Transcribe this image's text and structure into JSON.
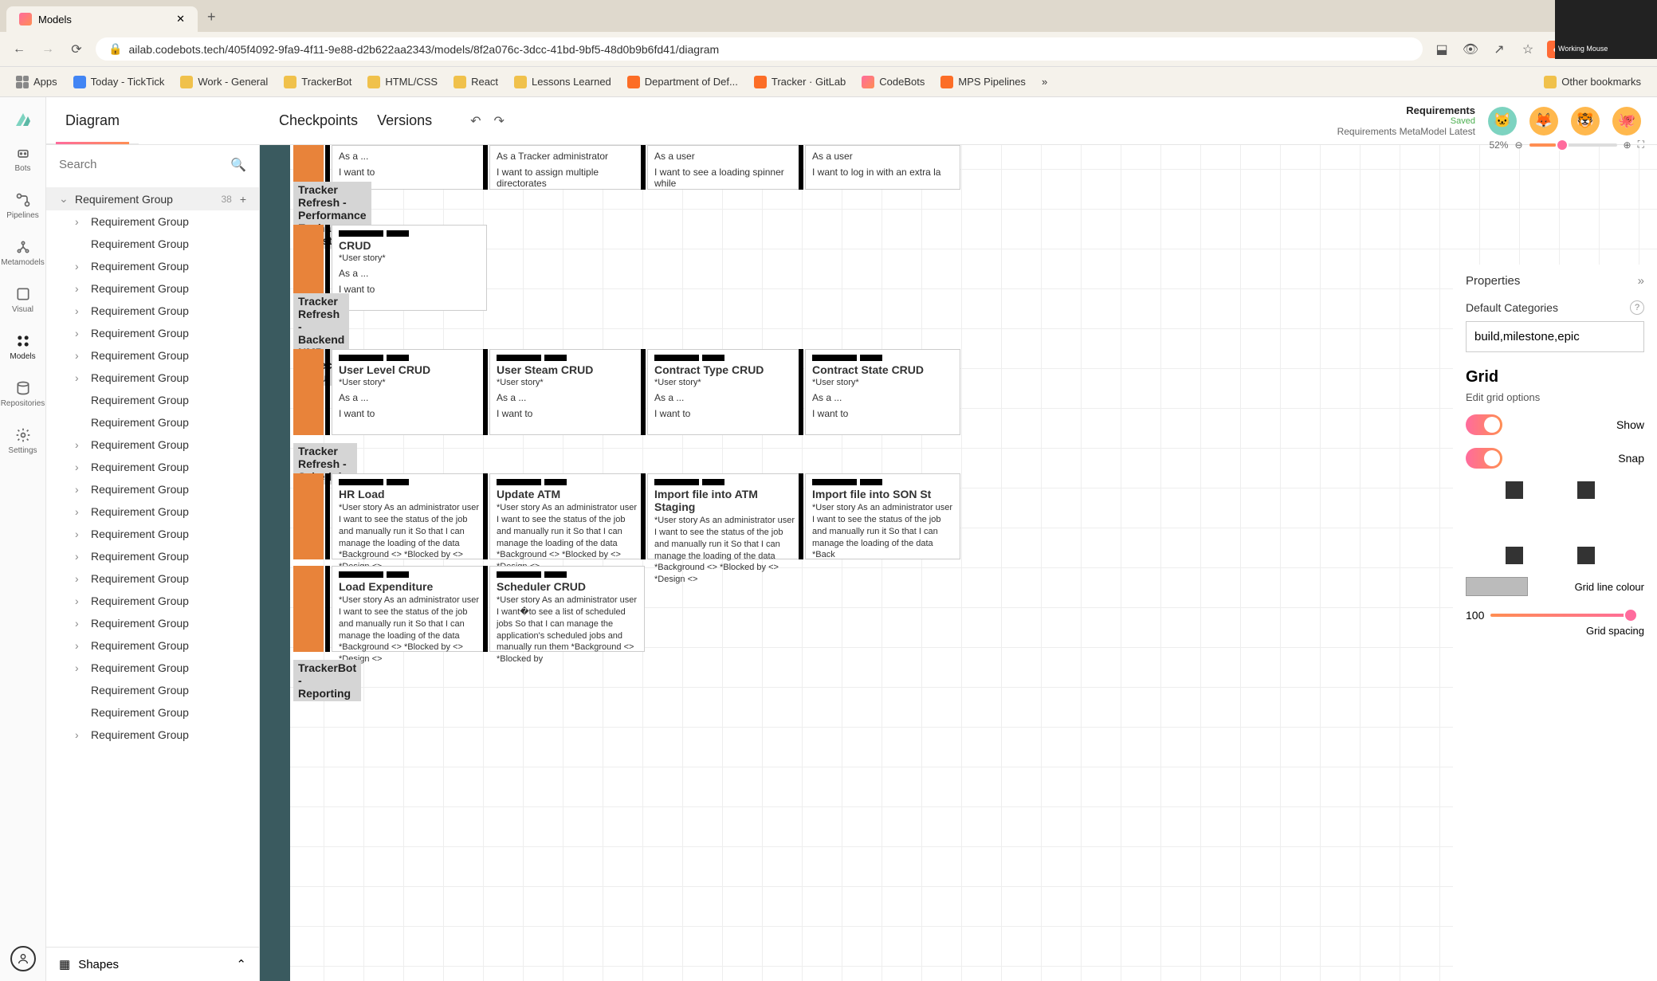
{
  "browser": {
    "tab_title": "Models",
    "url": "ailab.codebots.tech/405f4092-9fa9-4f11-9e88-d2b622aa2343/models/8f2a076c-3dcc-41bd-9bf5-48d0b9b6fd41/diagram",
    "bookmarks": [
      "Apps",
      "Today - TickTick",
      "Work - General",
      "TrackerBot",
      "HTML/CSS",
      "React",
      "Lessons Learned",
      "Department of Def...",
      "Tracker · GitLab",
      "CodeBots",
      "MPS Pipelines"
    ],
    "other_bookmarks": "Other bookmarks"
  },
  "rail": {
    "items": [
      "Bots",
      "Pipelines",
      "Metamodels",
      "Visual",
      "Models",
      "Repositories",
      "Settings"
    ]
  },
  "topbar": {
    "tabs": [
      "Diagram",
      "Checkpoints",
      "Versions"
    ],
    "req_title": "Requirements",
    "req_saved": "Saved",
    "req_meta": "Requirements MetaModel Latest"
  },
  "sidebar": {
    "search_placeholder": "Search",
    "root": {
      "label": "Requirement Group",
      "count": "38"
    },
    "children": [
      "Requirement Group",
      "Requirement Group",
      "Requirement Group",
      "Requirement Group",
      "Requirement Group",
      "Requirement Group",
      "Requirement Group",
      "Requirement Group",
      "Requirement Group",
      "Requirement Group",
      "Requirement Group",
      "Requirement Group",
      "Requirement Group",
      "Requirement Group",
      "Requirement Group",
      "Requirement Group",
      "Requirement Group",
      "Requirement Group",
      "Requirement Group",
      "Requirement Group",
      "Requirement Group",
      "Requirement Group",
      "Requirement Group",
      "Requirement Group"
    ],
    "shapes": "Shapes"
  },
  "canvas": {
    "top_cards": [
      {
        "asa": "As a ...",
        "want": "I want to"
      },
      {
        "asa": "As a Tracker administrator",
        "want": "I want to assign multiple directorates"
      },
      {
        "asa": "As a user",
        "want": "I want to see a loading spinner while"
      },
      {
        "asa": "As a user",
        "want": "I want to log in with an extra la"
      }
    ],
    "epics": [
      {
        "tag": "epic",
        "title": "Tracker Refresh - Performance Exchange Register",
        "cards": [
          {
            "title": "CRUD",
            "ustory": "*User story*",
            "asa": "As a ...",
            "want": "I want to"
          }
        ]
      },
      {
        "tag": "epic",
        "title": "Tracker Refresh - Backend NMP Project Menu",
        "cards": [
          {
            "title": "User Level CRUD",
            "ustory": "*User story*",
            "asa": "As a ...",
            "want": "I want to"
          },
          {
            "title": "User Steam CRUD",
            "ustory": "*User story*",
            "asa": "As a ...",
            "want": "I want to"
          },
          {
            "title": "Contract Type CRUD",
            "ustory": "*User story*",
            "asa": "As a ...",
            "want": "I want to"
          },
          {
            "title": "Contract State CRUD",
            "ustory": "*User story*",
            "asa": "As a ...",
            "want": "I want to"
          }
        ]
      },
      {
        "tag": "epic",
        "title": "Tracker Refresh - Scheduler",
        "cards": [
          {
            "title": "HR Load",
            "body": "*User story As an administrator user I want to see the status of the job and manually run it So that I can manage the loading of the data   *Background <>   *Blocked by <>   *Design <>"
          },
          {
            "title": "Update ATM",
            "body": "*User story As an administrator user I want to see the status of the job and manually run it So that I can manage the loading of the data   *Background <>   *Blocked by <>   *Design <>"
          },
          {
            "title": "Import file into ATM Staging",
            "body": "*User story As an administrator user I want to see the status of the job and manually run it So that I can manage the loading of the data   *Background <>   *Blocked by <>   *Design <>"
          },
          {
            "title": "Import file into SON St",
            "body": "*User story As an administrator user I want to see the status of the job and manually run it So that I can manage the loading of the data   *Back"
          },
          {
            "title": "Load Expenditure",
            "body": "*User story As an administrator user I want to see the status of the job and manually run it So that I can manage the loading of the data   *Background <>   *Blocked by <>   *Design <>"
          },
          {
            "title": "Scheduler CRUD",
            "body": "*User story As an administrator user I want�to see a list of scheduled jobs So that I can manage the application's scheduled jobs and manually run them   *Background <>   *Blocked by"
          }
        ]
      },
      {
        "tag": "epic",
        "title": "TrackerBot - Reporting"
      }
    ]
  },
  "props": {
    "zoom_pct": "52%",
    "header": "Properties",
    "default_cat_label": "Default Categories",
    "default_cat_value": "build,milestone,epic",
    "grid_header": "Grid",
    "grid_sub": "Edit grid options",
    "show_label": "Show",
    "snap_label": "Snap",
    "gridline_label": "Grid line colour",
    "spacing_value": "100",
    "spacing_label": "Grid spacing"
  },
  "video_label": "Working Mouse"
}
